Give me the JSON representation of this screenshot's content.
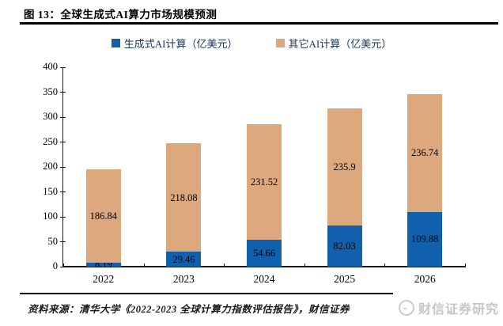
{
  "title": "图 13：全球生成式AI算力市场规模预测",
  "source": "资料来源：清华大学《2022-2023 全球计算力指数评估报告》，财信证券",
  "watermark": "财信证券研究",
  "colors": {
    "generative_blue": "#1160ae",
    "other_tan": "#dea87e",
    "legend_text": "#17365d",
    "axis": "#1a1a1a"
  },
  "chart_data": {
    "type": "bar",
    "stacked": true,
    "title": "全球生成式AI算力市场规模预测",
    "categories": [
      "2022",
      "2023",
      "2024",
      "2025",
      "2026"
    ],
    "series": [
      {
        "name": "生成式AI计算（亿美元）",
        "color": "#1160ae",
        "values": [
          8.19,
          29.46,
          54.66,
          82.03,
          109.88
        ],
        "labels": [
          "8.19",
          "29.46",
          "54.66",
          "82.03",
          "109.88"
        ]
      },
      {
        "name": "其它AI计算（亿美元）",
        "color": "#dea87e",
        "values": [
          186.84,
          218.08,
          231.52,
          235.9,
          236.74
        ],
        "labels": [
          "186.84",
          "218.08",
          "231.52",
          "235.9",
          "236.74"
        ]
      }
    ],
    "xlabel": "",
    "ylabel": "",
    "ylim": [
      0,
      400
    ],
    "ytick_step": 50,
    "legend_position": "top",
    "grid": false
  }
}
